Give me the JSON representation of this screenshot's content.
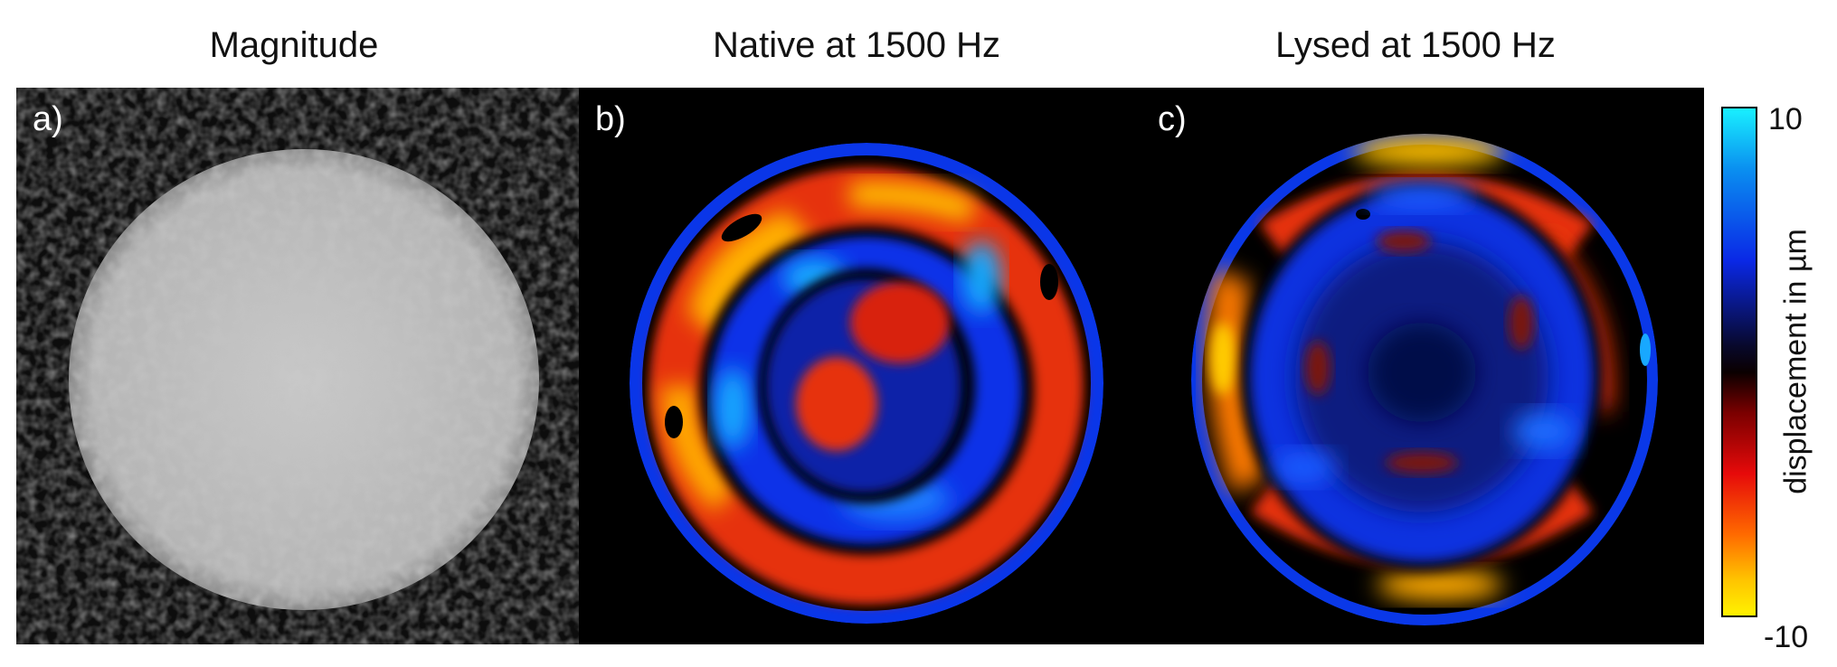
{
  "titles": {
    "magnitude": "Magnitude",
    "native": "Native at 1500 Hz",
    "lysed": "Lysed at 1500 Hz"
  },
  "panel_labels": {
    "a": "a)",
    "b": "b)",
    "c": "c)"
  },
  "colorbar": {
    "label": "displacement in µm",
    "max_tick": "10",
    "min_tick": "-10",
    "top_color": "#19f0ff",
    "bottom_color": "#fff200"
  },
  "colors": {
    "background": "#000000",
    "blue": "#0a28e6",
    "red": "#e6280a",
    "yellow": "#ffc800"
  }
}
